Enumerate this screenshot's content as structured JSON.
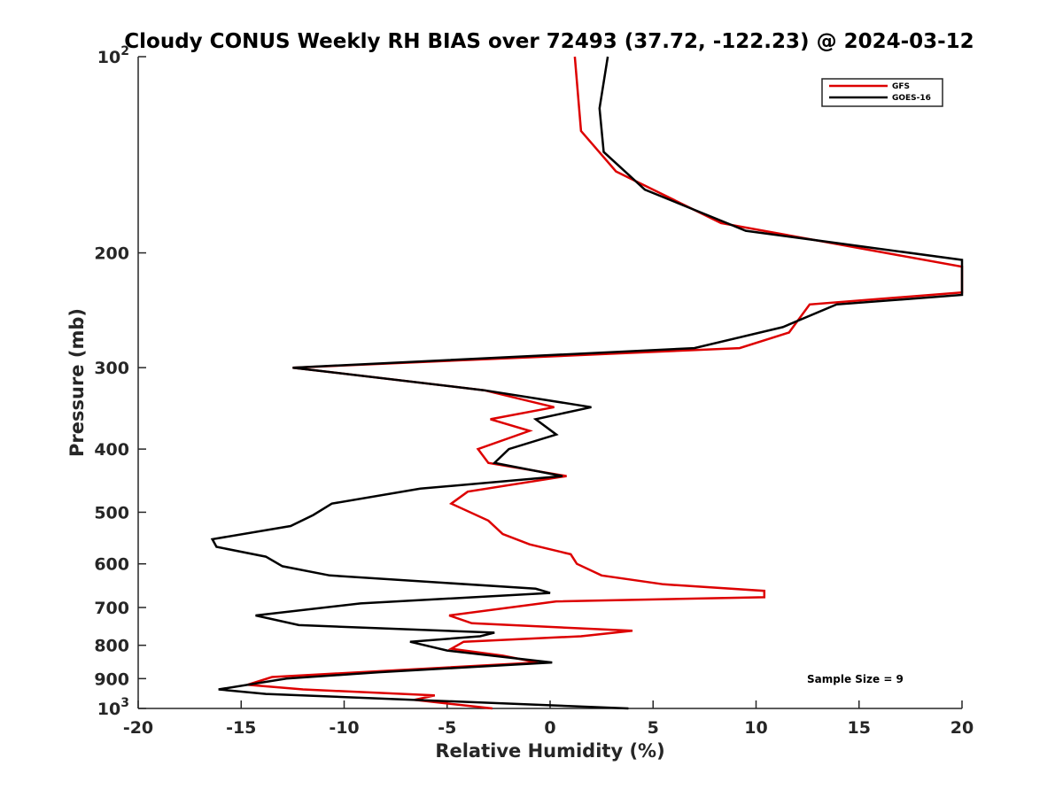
{
  "chart_data": {
    "type": "line",
    "title": "Cloudy CONUS Weekly RH BIAS over 72493 (37.72, -122.23) @ 2024-03-12",
    "xlabel": "Relative Humidity (%)",
    "ylabel": "Pressure (mb)",
    "xlim": [
      -20,
      20
    ],
    "ylim": [
      100,
      1000
    ],
    "y_scale": "log",
    "y_reversed": true,
    "grid": false,
    "legend_position": "top-right",
    "x_ticks": [
      "-20",
      "-15",
      "-10",
      "-5",
      "0",
      "5",
      "10",
      "15",
      "20"
    ],
    "y_ticks": [
      {
        "value": 100,
        "base": "10",
        "exp": "2"
      },
      {
        "value": 200,
        "label": "200"
      },
      {
        "value": 300,
        "label": "300"
      },
      {
        "value": 400,
        "label": "400"
      },
      {
        "value": 500,
        "label": "500"
      },
      {
        "value": 600,
        "label": "600"
      },
      {
        "value": 700,
        "label": "700"
      },
      {
        "value": 800,
        "label": "800"
      },
      {
        "value": 900,
        "label": "900"
      },
      {
        "value": 1000,
        "base": "10",
        "exp": "3"
      }
    ],
    "annotation": "Sample Size = 9",
    "series": [
      {
        "name": "GFS",
        "color": "#dd0000",
        "points": [
          [
            1.2,
            100
          ],
          [
            1.5,
            130
          ],
          [
            3.2,
            150
          ],
          [
            8.3,
            180
          ],
          [
            20,
            210
          ],
          [
            20,
            230
          ],
          [
            12.6,
            240
          ],
          [
            11.6,
            265
          ],
          [
            9.2,
            280
          ],
          [
            -12.5,
            300
          ],
          [
            -3.2,
            325
          ],
          [
            0.2,
            345
          ],
          [
            -2.9,
            360
          ],
          [
            -1,
            375
          ],
          [
            -3.5,
            400
          ],
          [
            -3.0,
            420
          ],
          [
            0.8,
            440
          ],
          [
            -4,
            465
          ],
          [
            -4.8,
            485
          ],
          [
            -3,
            515
          ],
          [
            -2.3,
            540
          ],
          [
            -1,
            560
          ],
          [
            1,
            580
          ],
          [
            1.3,
            600
          ],
          [
            2.5,
            625
          ],
          [
            5.5,
            645
          ],
          [
            10.4,
            660
          ],
          [
            10.4,
            675
          ],
          [
            0.3,
            685
          ],
          [
            -4.9,
            720
          ],
          [
            -3.8,
            740
          ],
          [
            4,
            760
          ],
          [
            1.5,
            775
          ],
          [
            -4.2,
            790
          ],
          [
            -4.8,
            810
          ],
          [
            -2.3,
            830
          ],
          [
            -0.6,
            850
          ],
          [
            -13.5,
            895
          ],
          [
            -14.7,
            920
          ],
          [
            -12,
            935
          ],
          [
            -5.6,
            955
          ],
          [
            -6.6,
            970
          ],
          [
            -2.8,
            1000
          ]
        ]
      },
      {
        "name": "GOES-16",
        "color": "#000000",
        "points": [
          [
            2.8,
            100
          ],
          [
            2.4,
            120
          ],
          [
            2.6,
            140
          ],
          [
            4.6,
            160
          ],
          [
            9.5,
            185
          ],
          [
            20,
            205
          ],
          [
            20,
            232
          ],
          [
            13.9,
            240
          ],
          [
            11.3,
            260
          ],
          [
            7.0,
            280
          ],
          [
            -12.5,
            300
          ],
          [
            -3.2,
            325
          ],
          [
            2,
            345
          ],
          [
            -0.7,
            360
          ],
          [
            0.3,
            380
          ],
          [
            -2,
            400
          ],
          [
            -2.7,
            420
          ],
          [
            0.6,
            440
          ],
          [
            -6.3,
            460
          ],
          [
            -10.6,
            485
          ],
          [
            -11.5,
            505
          ],
          [
            -12.6,
            525
          ],
          [
            -16.4,
            550
          ],
          [
            -16.2,
            565
          ],
          [
            -13.8,
            585
          ],
          [
            -13,
            605
          ],
          [
            -10.7,
            625
          ],
          [
            -0.7,
            655
          ],
          [
            0,
            665
          ],
          [
            -9.2,
            690
          ],
          [
            -14.3,
            720
          ],
          [
            -12.2,
            745
          ],
          [
            -2.7,
            765
          ],
          [
            -3.4,
            775
          ],
          [
            -6.8,
            790
          ],
          [
            -5,
            815
          ],
          [
            0.1,
            850
          ],
          [
            -8.3,
            880
          ],
          [
            -12.8,
            900
          ],
          [
            -16.1,
            935
          ],
          [
            -13.8,
            950
          ],
          [
            3.8,
            1000
          ]
        ]
      }
    ]
  }
}
